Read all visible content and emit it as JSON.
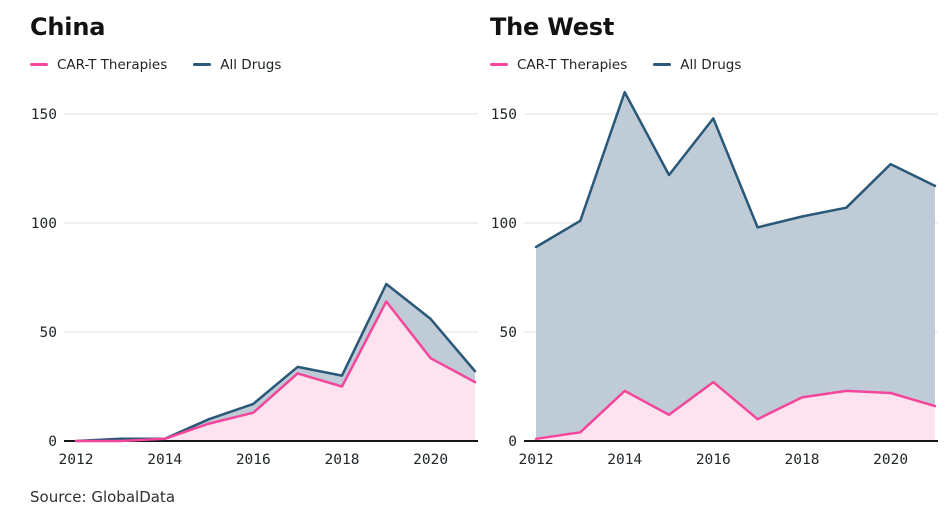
{
  "page": {
    "source": "Source: GlobalData"
  },
  "style": {
    "grid_color": "#e8e8e8",
    "axis_color": "#16161d",
    "tick_text_color": "#21272a"
  },
  "chart_data": [
    {
      "type": "area",
      "title": "China",
      "x": [
        2012,
        2013,
        2014,
        2015,
        2016,
        2017,
        2018,
        2019,
        2020,
        2021
      ],
      "series": [
        {
          "name": "CAR-T Therapies",
          "values": [
            0,
            0,
            1,
            8,
            13,
            31,
            25,
            64,
            38,
            27
          ],
          "line_color": "#f5469b",
          "fill_color": "#fce3ef"
        },
        {
          "name": "All Drugs",
          "values": [
            0,
            1,
            1,
            10,
            17,
            34,
            30,
            72,
            56,
            32
          ],
          "line_color": "#2a5878",
          "fill_color": "#bfcbd7"
        }
      ],
      "ylim": [
        0,
        150
      ],
      "yticks": [
        0,
        50,
        100,
        150
      ],
      "xticks": [
        2012,
        2014,
        2016,
        2018,
        2020
      ],
      "grid": true,
      "legend_position": "top-left"
    },
    {
      "type": "area",
      "title": "The West",
      "x": [
        2012,
        2013,
        2014,
        2015,
        2016,
        2017,
        2018,
        2019,
        2020,
        2021
      ],
      "series": [
        {
          "name": "CAR-T Therapies",
          "values": [
            1,
            4,
            23,
            12,
            27,
            10,
            20,
            23,
            22,
            16
          ],
          "line_color": "#f5469b",
          "fill_color": "#fce3ef"
        },
        {
          "name": "All Drugs",
          "values": [
            89,
            101,
            160,
            122,
            148,
            98,
            103,
            107,
            127,
            117
          ],
          "line_color": "#2a5878",
          "fill_color": "#bfcbd7"
        }
      ],
      "ylim": [
        0,
        150
      ],
      "yticks": [
        0,
        50,
        100,
        150
      ],
      "xticks": [
        2012,
        2014,
        2016,
        2018,
        2020
      ],
      "grid": true,
      "legend_position": "top-left"
    }
  ]
}
